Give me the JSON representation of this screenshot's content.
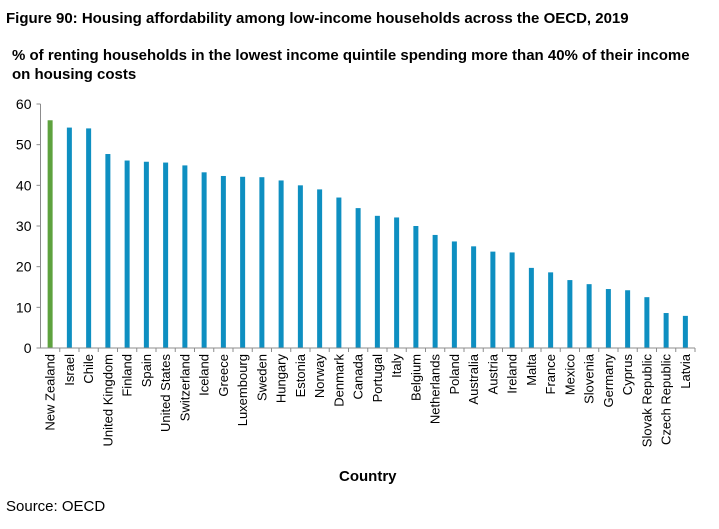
{
  "figure": {
    "title": "Figure 90: Housing affordability among low-income households across the OECD, 2019",
    "source": "Source: OECD"
  },
  "colors": {
    "default_bar": "#0e8fc1",
    "highlight_bar": "#5ea23e",
    "axis": "#8c8c8c"
  },
  "chart_data": {
    "type": "bar",
    "title": "% of renting households in the lowest income quintile spending more than 40% of their income on housing costs",
    "xlabel": "Country",
    "ylabel": "",
    "ylim": [
      0,
      60
    ],
    "yticks": [
      0,
      10,
      20,
      30,
      40,
      50,
      60
    ],
    "grid": false,
    "highlight": [
      "New Zealand"
    ],
    "categories": [
      "New Zealand",
      "Israel",
      "Chile",
      "United Kingdom",
      "Finland",
      "Spain",
      "United States",
      "Switzerland",
      "Iceland",
      "Greece",
      "Luxembourg",
      "Sweden",
      "Hungary",
      "Estonia",
      "Norway",
      "Denmark",
      "Canada",
      "Portugal",
      "Italy",
      "Belgium",
      "Netherlands",
      "Poland",
      "Australia",
      "Austria",
      "Ireland",
      "Malta",
      "France",
      "Mexico",
      "Slovenia",
      "Germany",
      "Cyprus",
      "Slovak Republic",
      "Czech Republic",
      "Latvia"
    ],
    "values": [
      56,
      54.2,
      54,
      47.7,
      46.1,
      45.8,
      45.6,
      44.9,
      43.2,
      42.3,
      42.1,
      42,
      41.2,
      40,
      39,
      37,
      34.4,
      32.5,
      32.1,
      30,
      27.8,
      26.2,
      25,
      23.7,
      23.5,
      19.7,
      18.6,
      16.7,
      15.7,
      14.5,
      14.2,
      12.5,
      8.6,
      7.9
    ]
  }
}
